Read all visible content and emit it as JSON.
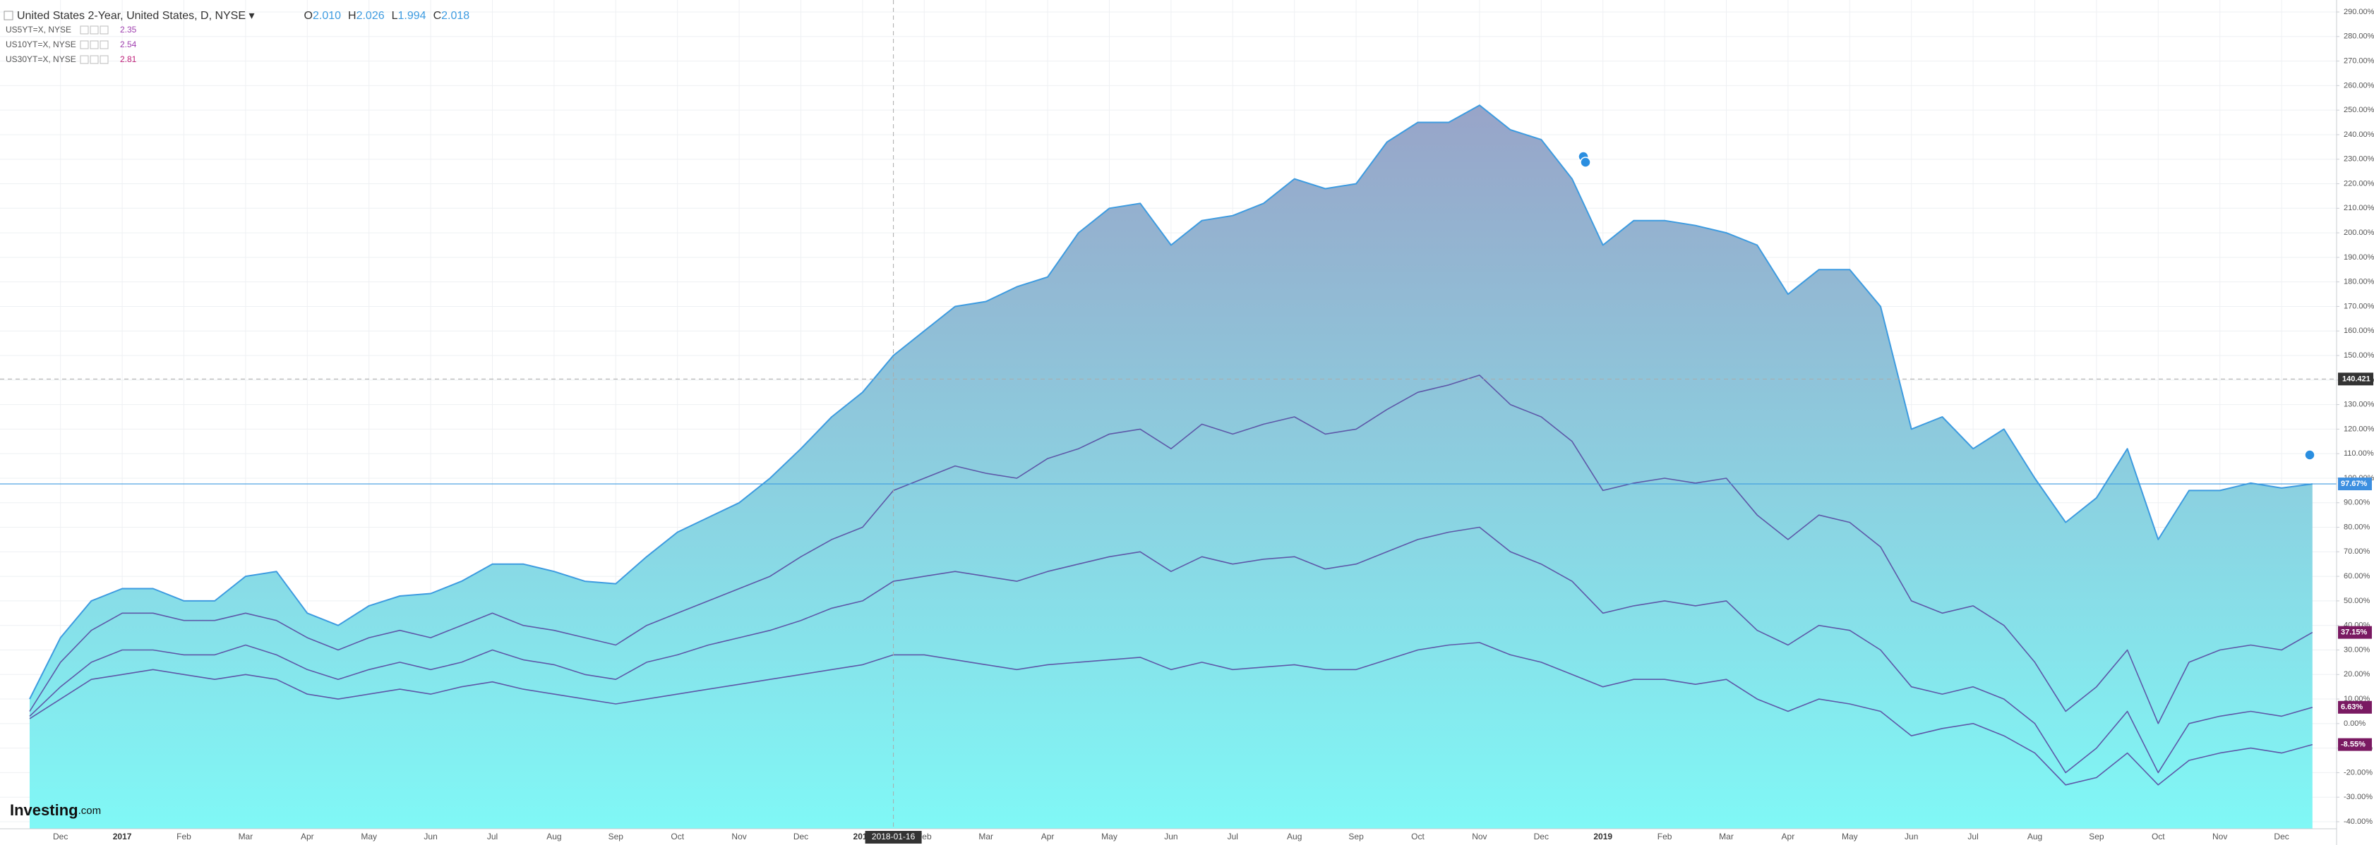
{
  "chart_data": {
    "type": "area-lines",
    "header": {
      "ohlc": [
        {
          "key": "O",
          "value": "2.010"
        },
        {
          "key": "H",
          "value": "2.026"
        },
        {
          "key": "L",
          "value": "1.994"
        },
        {
          "key": "C",
          "value": "2.018"
        }
      ]
    },
    "categories": [
      null,
      "Dec",
      null,
      "2017",
      null,
      "Feb",
      null,
      "Mar",
      null,
      "Apr",
      null,
      "May",
      null,
      "Jun",
      null,
      "Jul",
      null,
      "Aug",
      null,
      "Sep",
      null,
      "Oct",
      null,
      "Nov",
      null,
      "Dec",
      null,
      "2018",
      null,
      "Feb",
      null,
      "Mar",
      null,
      "Apr",
      null,
      "May",
      null,
      "Jun",
      null,
      "Jul",
      null,
      "Aug",
      null,
      "Sep",
      null,
      "Oct",
      null,
      "Nov",
      null,
      "Dec",
      null,
      "2019",
      null,
      "Feb",
      null,
      "Mar",
      null,
      "Apr",
      null,
      "May",
      null,
      "Jun",
      null,
      "Jul",
      null,
      "Aug",
      null,
      "Sep",
      null,
      "Oct",
      null,
      "Nov",
      null,
      "Dec",
      null
    ],
    "series": [
      {
        "name": "United States 2-Year, United States, D, NYSE",
        "color": "#3d9be0",
        "label_color": "#3d8fe0",
        "end_label": "97.67%",
        "values": [
          10,
          35,
          50,
          55,
          55,
          50,
          50,
          60,
          62,
          45,
          40,
          48,
          52,
          53,
          58,
          65,
          65,
          62,
          58,
          57,
          68,
          78,
          84,
          90,
          100,
          112,
          125,
          135,
          150,
          160,
          170,
          172,
          178,
          182,
          200,
          210,
          212,
          195,
          205,
          207,
          212,
          222,
          218,
          220,
          237,
          245,
          245,
          252,
          242,
          238,
          222,
          195,
          205,
          205,
          203,
          200,
          195,
          175,
          185,
          185,
          170,
          120,
          125,
          112,
          120,
          100,
          82,
          92,
          112,
          75,
          95,
          95,
          98,
          96,
          97.67
        ]
      },
      {
        "name": "US5YT=X, NYSE",
        "color": "#5d58a8",
        "legend_value": "2.35",
        "legend_color": "#a040b0",
        "label_color": "#7a1a62",
        "end_label": "37.15%",
        "values": [
          5,
          25,
          38,
          45,
          45,
          42,
          42,
          45,
          42,
          35,
          30,
          35,
          38,
          35,
          40,
          45,
          40,
          38,
          35,
          32,
          40,
          45,
          50,
          55,
          60,
          68,
          75,
          80,
          95,
          100,
          105,
          102,
          100,
          108,
          112,
          118,
          120,
          112,
          122,
          118,
          122,
          125,
          118,
          120,
          128,
          135,
          138,
          142,
          130,
          125,
          115,
          95,
          98,
          100,
          98,
          100,
          85,
          75,
          85,
          82,
          72,
          50,
          45,
          48,
          40,
          25,
          5,
          15,
          30,
          0,
          25,
          30,
          32,
          30,
          37.15
        ]
      },
      {
        "name": "US10YT=X, NYSE",
        "color": "#5d58a8",
        "legend_value": "2.54",
        "legend_color": "#a040b0",
        "label_color": "#7a1a62",
        "end_label": "6.63%",
        "values": [
          3,
          15,
          25,
          30,
          30,
          28,
          28,
          32,
          28,
          22,
          18,
          22,
          25,
          22,
          25,
          30,
          26,
          24,
          20,
          18,
          25,
          28,
          32,
          35,
          38,
          42,
          47,
          50,
          58,
          60,
          62,
          60,
          58,
          62,
          65,
          68,
          70,
          62,
          68,
          65,
          67,
          68,
          63,
          65,
          70,
          75,
          78,
          80,
          70,
          65,
          58,
          45,
          48,
          50,
          48,
          50,
          38,
          32,
          40,
          38,
          30,
          15,
          12,
          15,
          10,
          0,
          -20,
          -10,
          5,
          -20,
          0,
          3,
          5,
          3,
          6.63
        ]
      },
      {
        "name": "US30YT=X, NYSE",
        "color": "#5d58a8",
        "legend_value": "2.81",
        "legend_color": "#c0207a",
        "label_color": "#7a1a62",
        "end_label": "-8.55%",
        "values": [
          2,
          10,
          18,
          20,
          22,
          20,
          18,
          20,
          18,
          12,
          10,
          12,
          14,
          12,
          15,
          17,
          14,
          12,
          10,
          8,
          10,
          12,
          14,
          16,
          18,
          20,
          22,
          24,
          28,
          28,
          26,
          24,
          22,
          24,
          25,
          26,
          27,
          22,
          25,
          22,
          23,
          24,
          22,
          22,
          26,
          30,
          32,
          33,
          28,
          25,
          20,
          15,
          18,
          18,
          16,
          18,
          10,
          5,
          10,
          8,
          5,
          -5,
          -2,
          0,
          -5,
          -12,
          -25,
          -22,
          -12,
          -25,
          -15,
          -12,
          -10,
          -12,
          -8.55
        ]
      }
    ],
    "ylim": [
      -40,
      290
    ],
    "yticks": [
      {
        "value": -40,
        "label": "-40.00%"
      },
      {
        "value": -30,
        "label": "-30.00%"
      },
      {
        "value": -20,
        "label": "-20.00%"
      },
      {
        "value": -10,
        "label": "-10.00%"
      },
      {
        "value": 0,
        "label": "0.00%"
      },
      {
        "value": 10,
        "label": "10.00%"
      },
      {
        "value": 20,
        "label": "20.00%"
      },
      {
        "value": 30,
        "label": "30.00%"
      },
      {
        "value": 40,
        "label": "40.00%"
      },
      {
        "value": 50,
        "label": "50.00%"
      },
      {
        "value": 60,
        "label": "60.00%"
      },
      {
        "value": 70,
        "label": "70.00%"
      },
      {
        "value": 80,
        "label": "80.00%"
      },
      {
        "value": 90,
        "label": "90.00%"
      },
      {
        "value": 100,
        "label": "100.00%"
      },
      {
        "value": 110,
        "label": "110.00%"
      },
      {
        "value": 120,
        "label": "120.00%"
      },
      {
        "value": 130,
        "label": "130.00%"
      },
      {
        "value": 140,
        "label": "140.00%"
      },
      {
        "value": 150,
        "label": "150.00%"
      },
      {
        "value": 160,
        "label": "160.00%"
      },
      {
        "value": 170,
        "label": "170.00%"
      },
      {
        "value": 180,
        "label": "180.00%"
      },
      {
        "value": 190,
        "label": "190.00%"
      },
      {
        "value": 200,
        "label": "200.00%"
      },
      {
        "value": 210,
        "label": "210.00%"
      },
      {
        "value": 220,
        "label": "220.00%"
      },
      {
        "value": 230,
        "label": "230.00%"
      },
      {
        "value": 240,
        "label": "240.00%"
      },
      {
        "value": 250,
        "label": "250.00%"
      },
      {
        "value": 260,
        "label": "260.00%"
      },
      {
        "value": 270,
        "label": "270.00%"
      },
      {
        "value": 280,
        "label": "280.00%"
      },
      {
        "value": 290,
        "label": "290.00%"
      }
    ],
    "grid": true,
    "area_top_color": "#98a4c8",
    "area_bottom_color": "#80f8f6",
    "crosshair": {
      "y": 140.421,
      "y_label": "140.421",
      "x_label": "2018-01-16"
    },
    "logo": {
      "brand": "Investing",
      "suffix": ".com"
    }
  }
}
